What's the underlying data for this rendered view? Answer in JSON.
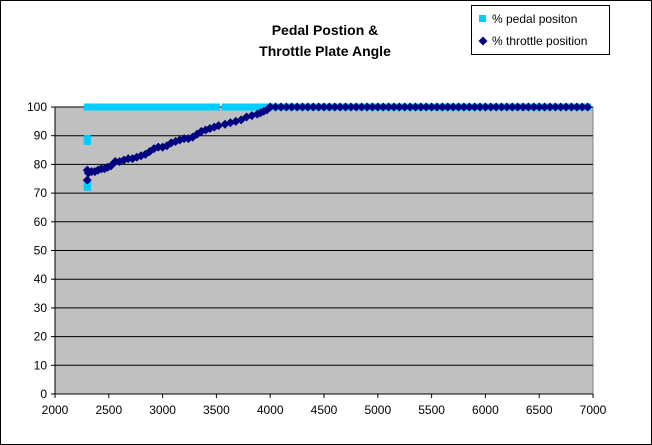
{
  "chart_data": {
    "type": "scatter",
    "title_lines": [
      "Pedal Postion &",
      "Throttle Plate Angle"
    ],
    "xlim": [
      2000,
      7000
    ],
    "ylim": [
      0,
      100
    ],
    "x_ticks": [
      "2000",
      "2500",
      "3000",
      "3500",
      "4000",
      "4500",
      "5000",
      "5500",
      "6000",
      "6500",
      "7000"
    ],
    "y_ticks": [
      "0",
      "10",
      "20",
      "30",
      "40",
      "50",
      "60",
      "70",
      "80",
      "90",
      "100"
    ],
    "grid": "horizontal",
    "plot_background": "#C0C0C0",
    "legend_position": "top-right",
    "series": [
      {
        "name": "% pedal positon",
        "marker": "square",
        "color": "#00CCFF",
        "x": [
          2300,
          2300,
          2300,
          2300,
          2300,
          2330,
          2360,
          2390,
          2420,
          2450,
          2480,
          2510,
          2540,
          2570,
          2600,
          2630,
          2660,
          2690,
          2720,
          2750,
          2780,
          2810,
          2840,
          2870,
          2900,
          2930,
          2960,
          2990,
          3020,
          3050,
          3080,
          3110,
          3140,
          3170,
          3200,
          3230,
          3260,
          3290,
          3350,
          3380,
          3410,
          3440,
          3470,
          3500,
          3580,
          3610,
          3640,
          3670,
          3700,
          3730,
          3760,
          3790,
          3820,
          3850,
          3880,
          3910,
          3940,
          3970,
          4000,
          4050,
          4100,
          4150,
          4200,
          4250,
          4300,
          4350,
          4400,
          4450,
          4500,
          4550,
          4600,
          4650,
          4700,
          4750,
          4800,
          4850,
          4900,
          4950,
          5000,
          5050,
          5100,
          5150,
          5200,
          5250,
          5300,
          5350,
          5400,
          5450,
          5500,
          5550,
          5600,
          5650,
          5700,
          5750,
          5800,
          5850,
          5900,
          5950,
          6000,
          6050,
          6100,
          6150,
          6200,
          6250,
          6300,
          6350,
          6400,
          6450,
          6500,
          6550,
          6600,
          6650,
          6700,
          6750,
          6800,
          6850,
          6900,
          6950
        ],
        "y": [
          72,
          73,
          88,
          89,
          100,
          100,
          100,
          100,
          100,
          100,
          100,
          100,
          100,
          100,
          100,
          100,
          100,
          100,
          100,
          100,
          100,
          100,
          100,
          100,
          100,
          100,
          100,
          100,
          100,
          100,
          100,
          100,
          100,
          100,
          100,
          100,
          100,
          100,
          100,
          100,
          100,
          100,
          100,
          100,
          100,
          100,
          100,
          100,
          100,
          100,
          100,
          100,
          100,
          100,
          100,
          100,
          100,
          100,
          100,
          100,
          100,
          100,
          100,
          100,
          100,
          100,
          100,
          100,
          100,
          100,
          100,
          100,
          100,
          100,
          100,
          100,
          100,
          100,
          100,
          100,
          100,
          100,
          100,
          100,
          100,
          100,
          100,
          100,
          100,
          100,
          100,
          100,
          100,
          100,
          100,
          100,
          100,
          100,
          100,
          100,
          100,
          100,
          100,
          100,
          100,
          100,
          100,
          100,
          100,
          100,
          100,
          100,
          100,
          100,
          100,
          100,
          100,
          100
        ]
      },
      {
        "name": "% throttle position",
        "marker": "diamond",
        "color": "#000080",
        "x": [
          2300,
          2300,
          2310,
          2340,
          2370,
          2400,
          2430,
          2460,
          2490,
          2520,
          2560,
          2600,
          2640,
          2680,
          2720,
          2760,
          2800,
          2840,
          2880,
          2920,
          2960,
          3000,
          3040,
          3080,
          3120,
          3160,
          3200,
          3240,
          3280,
          3320,
          3360,
          3400,
          3440,
          3480,
          3520,
          3580,
          3630,
          3680,
          3730,
          3780,
          3830,
          3880,
          3910,
          3940,
          3970,
          4000,
          4050,
          4100,
          4150,
          4200,
          4250,
          4300,
          4350,
          4400,
          4450,
          4500,
          4550,
          4600,
          4650,
          4700,
          4750,
          4800,
          4850,
          4900,
          4950,
          5000,
          5050,
          5100,
          5150,
          5200,
          5250,
          5300,
          5350,
          5400,
          5450,
          5500,
          5550,
          5600,
          5650,
          5700,
          5750,
          5800,
          5850,
          5900,
          5950,
          6000,
          6050,
          6100,
          6150,
          6200,
          6250,
          6300,
          6350,
          6400,
          6450,
          6500,
          6550,
          6600,
          6650,
          6700,
          6750,
          6800,
          6850,
          6900,
          6950
        ],
        "y": [
          74.5,
          78,
          77,
          77.5,
          77.5,
          78,
          78.5,
          78.5,
          79,
          79.5,
          81,
          81,
          81.5,
          82,
          82,
          82.5,
          83,
          83.5,
          84.5,
          85.5,
          86,
          86,
          86.5,
          87.5,
          88,
          88.5,
          89,
          89,
          89.5,
          90.5,
          91.5,
          92,
          92.5,
          93,
          93.5,
          94,
          94.5,
          95,
          95.5,
          96.5,
          97,
          97.5,
          98,
          98.5,
          99,
          100,
          100,
          100,
          100,
          100,
          100,
          100,
          100,
          100,
          100,
          100,
          100,
          100,
          100,
          100,
          100,
          100,
          100,
          100,
          100,
          100,
          100,
          100,
          100,
          100,
          100,
          100,
          100,
          100,
          100,
          100,
          100,
          100,
          100,
          100,
          100,
          100,
          100,
          100,
          100,
          100,
          100,
          100,
          100,
          100,
          100,
          100,
          100,
          100,
          100,
          100,
          100,
          100,
          100,
          100,
          100,
          100,
          100,
          100,
          100
        ]
      }
    ]
  }
}
